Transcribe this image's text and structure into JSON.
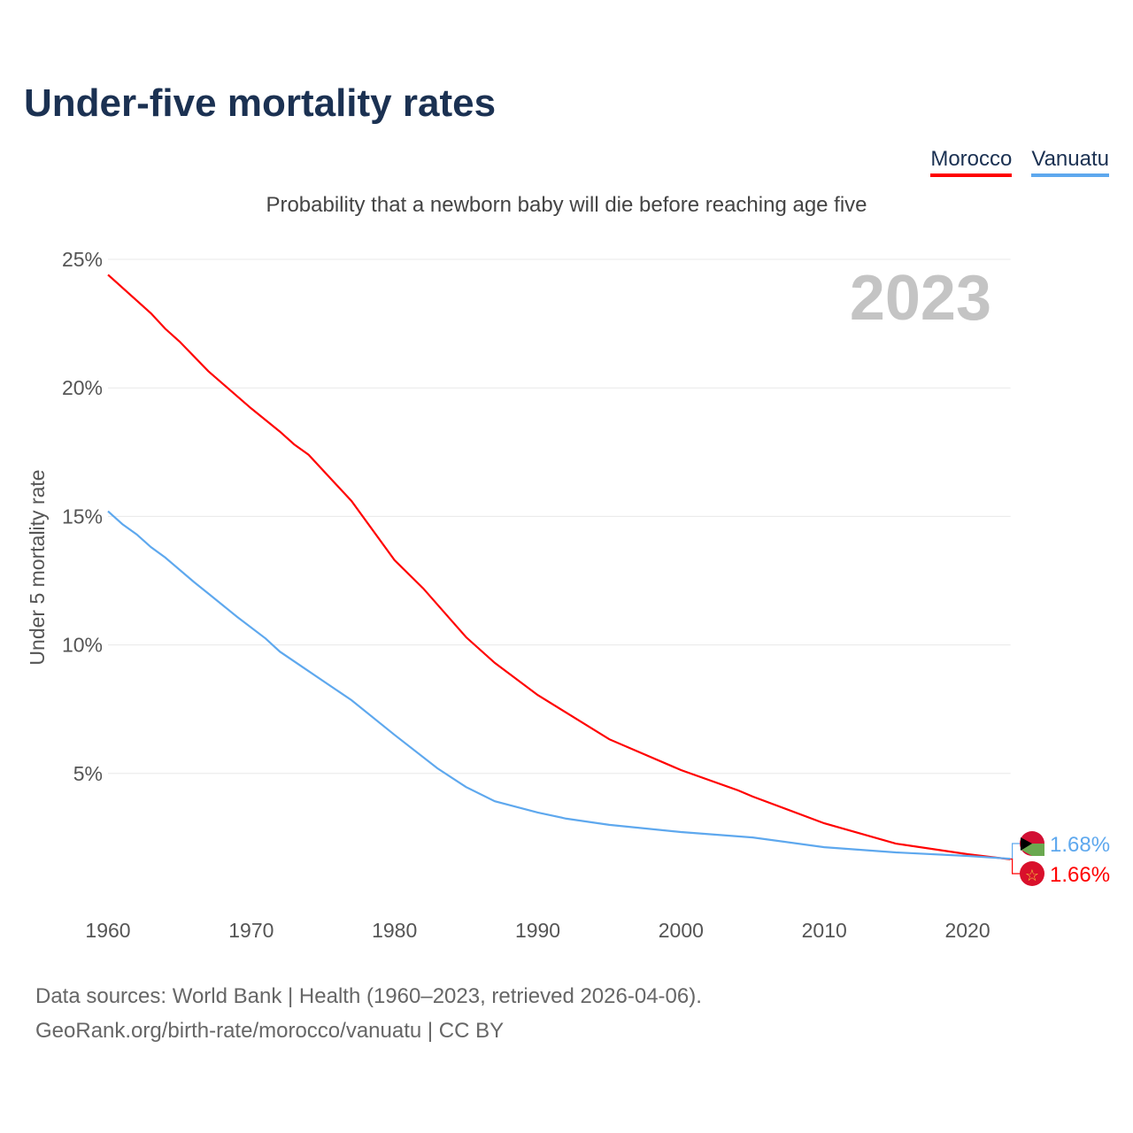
{
  "title": "Under-five mortality rates",
  "subtitle": "Probability that a newborn baby will die before reaching age five",
  "source_line1": "Data sources: World Bank | Health (1960–2023, retrieved 2026-04-06).",
  "source_line2": "GeoRank.org/birth-rate/morocco/vanuatu | CC BY",
  "chart_data": {
    "type": "line",
    "ylabel": "Under 5 mortality rate",
    "xlim": [
      1960,
      2023
    ],
    "ylim": [
      0,
      25
    ],
    "xticks": [
      1960,
      1970,
      1980,
      1990,
      2000,
      2010,
      2020
    ],
    "yticks": [
      5,
      10,
      15,
      20,
      25
    ],
    "ytick_labels": [
      "5%",
      "10%",
      "15%",
      "20%",
      "25%"
    ],
    "year_watermark": "2023",
    "grid": true,
    "legend": "top-right",
    "series": [
      {
        "name": "Morocco",
        "color": "#ff0000",
        "end_label": "1.66%",
        "x": [
          1960,
          1963,
          1964,
          1965,
          1967,
          1970,
          1972,
          1973,
          1974,
          1977,
          1980,
          1982,
          1985,
          1987,
          1990,
          1995,
          2000,
          2004,
          2005,
          2010,
          2015,
          2020,
          2023
        ],
        "y": [
          24.4,
          22.9,
          22.3,
          21.8,
          20.65,
          19.2,
          18.3,
          17.8,
          17.4,
          15.6,
          13.3,
          12.2,
          10.3,
          9.3,
          8.05,
          6.33,
          5.13,
          4.34,
          4.1,
          3.06,
          2.27,
          1.86,
          1.66
        ]
      },
      {
        "name": "Vanuatu",
        "color": "#5ea8ee",
        "end_label": "1.68%",
        "x": [
          1960,
          1961,
          1962,
          1963,
          1964,
          1966,
          1967,
          1969,
          1971,
          1972,
          1974,
          1977,
          1980,
          1983,
          1985,
          1987,
          1990,
          1992,
          1995,
          2000,
          2005,
          2010,
          2015,
          2020,
          2023
        ],
        "y": [
          15.2,
          14.7,
          14.3,
          13.8,
          13.4,
          12.45,
          12.0,
          11.1,
          10.25,
          9.74,
          8.98,
          7.85,
          6.5,
          5.2,
          4.47,
          3.92,
          3.48,
          3.24,
          3.0,
          2.72,
          2.51,
          2.13,
          1.93,
          1.79,
          1.68
        ]
      }
    ]
  }
}
